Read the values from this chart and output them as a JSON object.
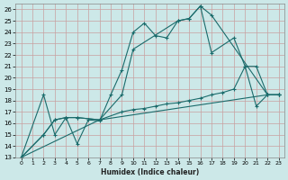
{
  "xlabel": "Humidex (Indice chaleur)",
  "background_color": "#cce8e8",
  "grid_color": "#b8d8d8",
  "line_color": "#1a6b6b",
  "xlim": [
    -0.5,
    23.5
  ],
  "ylim": [
    13,
    26.5
  ],
  "xticks": [
    0,
    1,
    2,
    3,
    4,
    5,
    6,
    7,
    8,
    9,
    10,
    11,
    12,
    13,
    14,
    15,
    16,
    17,
    18,
    19,
    20,
    21,
    22,
    23
  ],
  "yticks": [
    13,
    14,
    15,
    16,
    17,
    18,
    19,
    20,
    21,
    22,
    23,
    24,
    25,
    26
  ],
  "series": [
    {
      "x": [
        0,
        2,
        3,
        4,
        5,
        6,
        7,
        8,
        9,
        10,
        11,
        12,
        13,
        14,
        15,
        16,
        17,
        22,
        23
      ],
      "y": [
        13,
        18.5,
        15,
        16.5,
        14.2,
        16.3,
        16.2,
        18.5,
        20.7,
        24.0,
        24.8,
        23.7,
        23.5,
        25.0,
        25.2,
        26.3,
        25.5,
        18.5,
        18.5
      ]
    },
    {
      "x": [
        0,
        2,
        3,
        4,
        5,
        7,
        9,
        10,
        11,
        12,
        13,
        14,
        15,
        16,
        17,
        18,
        19,
        20,
        21,
        22,
        23
      ],
      "y": [
        13,
        15,
        16.3,
        16.5,
        16.5,
        16.3,
        17.0,
        17.2,
        17.3,
        17.5,
        17.7,
        17.8,
        18.0,
        18.2,
        18.5,
        18.7,
        19.0,
        21.0,
        21.0,
        18.5,
        18.5
      ]
    },
    {
      "x": [
        0,
        2,
        3,
        4,
        5,
        7,
        22,
        23
      ],
      "y": [
        13,
        15,
        16.3,
        16.5,
        16.5,
        16.3,
        18.5,
        18.5
      ]
    },
    {
      "x": [
        0,
        7,
        9,
        10,
        14,
        15,
        16,
        17,
        19,
        20,
        21,
        22,
        23
      ],
      "y": [
        13,
        16.3,
        18.5,
        22.5,
        25.0,
        25.2,
        26.3,
        22.2,
        23.5,
        21.0,
        17.5,
        18.5,
        18.5
      ]
    }
  ]
}
